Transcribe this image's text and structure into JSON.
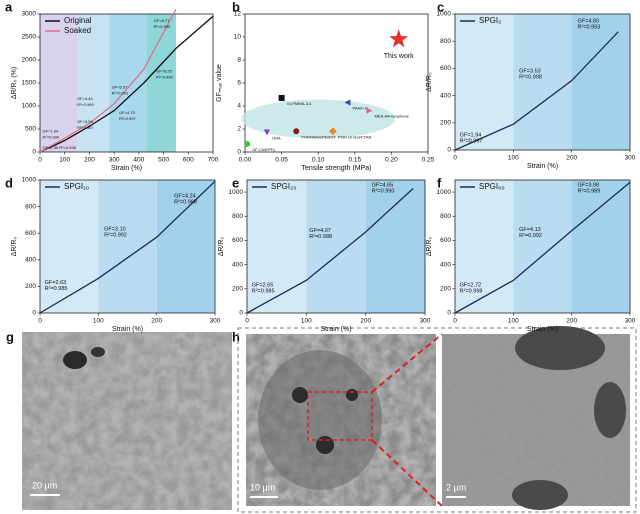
{
  "chart_data": [
    {
      "panel": "a",
      "type": "line",
      "xlabel": "Strain (%)",
      "ylabel": "ΔR/R₀ (%)",
      "x": [
        0,
        100,
        200,
        300,
        420,
        550,
        700
      ],
      "xlim": [
        0,
        700
      ],
      "xticks": [
        0,
        100,
        200,
        300,
        400,
        500,
        600,
        700
      ],
      "ylim": [
        0,
        3000
      ],
      "yticks": [
        0,
        500,
        1000,
        1500,
        2000,
        2500,
        3000
      ],
      "legend": "upper left",
      "series": [
        {
          "name": "Original",
          "color": "#111111",
          "values": [
            0,
            250,
            560,
            900,
            1500,
            2250,
            2950
          ]
        },
        {
          "name": "Soaked",
          "color": "#e0708a",
          "values": [
            0,
            300,
            620,
            1050,
            1800,
            3100,
            null
          ]
        }
      ],
      "regions": [
        {
          "from": 0,
          "to": 150,
          "color": "#d9d2ef"
        },
        {
          "from": 150,
          "to": 280,
          "color": "#c7e3f3"
        },
        {
          "from": 280,
          "to": 430,
          "color": "#a8d8ee"
        },
        {
          "from": 430,
          "to": 550,
          "color": "#8ed6d8"
        }
      ],
      "annotations": [
        {
          "x": 10,
          "y": 450,
          "lines": [
            "GF=1.94",
            "R²=0.999"
          ]
        },
        {
          "x": 10,
          "y": 90,
          "lines": [
            "GF=2.35 R²=0.998"
          ]
        },
        {
          "x": 150,
          "y": 1150,
          "lines": [
            "GF=4.44",
            "R²=0.999"
          ]
        },
        {
          "x": 150,
          "y": 650,
          "lines": [
            "GF=3.59",
            "R²=0.997"
          ]
        },
        {
          "x": 290,
          "y": 1400,
          "lines": [
            "GF=5.37",
            "R²=0.991"
          ]
        },
        {
          "x": 320,
          "y": 850,
          "lines": [
            "GF=4.75",
            "R²=0.997"
          ]
        },
        {
          "x": 460,
          "y": 2850,
          "lines": [
            "GF=8.71",
            "R²=0.993"
          ]
        },
        {
          "x": 470,
          "y": 1750,
          "lines": [
            "GF=6.25",
            "R²=0.999"
          ]
        }
      ]
    },
    {
      "panel": "b",
      "type": "scatter",
      "xlabel": "Tensile strength (MPa)",
      "ylabel": "GFₘₐₓ value",
      "xlim": [
        0,
        0.25
      ],
      "xticks": [
        {
          "value": 0,
          "label": "0.00"
        },
        {
          "value": 0.05,
          "label": "0.05"
        },
        {
          "value": 0.1,
          "label": "0.10"
        },
        {
          "value": 0.15,
          "label": "0.15"
        },
        {
          "value": 0.2,
          "label": "0.20"
        },
        {
          "value": 0.25,
          "label": "0.25"
        }
      ],
      "ylim": [
        0,
        12
      ],
      "yticks": [
        0,
        2,
        4,
        6,
        8,
        10,
        12
      ],
      "points": [
        {
          "label": "This work",
          "x": 0.21,
          "y": 9.8,
          "color": "#e8312f",
          "marker": "star"
        },
        {
          "label": "Gr-PMMA-3.4",
          "x": 0.05,
          "y": 4.7,
          "color": "#111111",
          "marker": "square"
        },
        {
          "label": "PAAm-hi",
          "x": 0.14,
          "y": 4.3,
          "color": "#2744c8",
          "marker": "triangle-left"
        },
        {
          "label": "MEA-AA-Graphene",
          "x": 0.17,
          "y": 3.6,
          "color": "#e0609a",
          "marker": "triangle-right"
        },
        {
          "label": "OHA",
          "x": 0.03,
          "y": 1.7,
          "color": "#8a3cc8",
          "marker": "triangle-down"
        },
        {
          "label": "PVA/PAAm/PEDOT",
          "x": 0.07,
          "y": 1.8,
          "color": "#8a1a1a",
          "marker": "circle"
        },
        {
          "label": "PVA+ch-Gel/CTAB",
          "x": 0.12,
          "y": 1.8,
          "color": "#f08a24",
          "marker": "diamond"
        },
        {
          "label": "GF-Ch/EPFy",
          "x": 0.003,
          "y": 0.7,
          "color": "#3cc83c",
          "marker": "circle"
        }
      ]
    },
    {
      "panel": "c",
      "type": "line",
      "xlabel": "Strain (%)",
      "ylabel": "ΔR/R₀",
      "x": [
        0,
        100,
        200,
        280
      ],
      "xlim": [
        0,
        300
      ],
      "xticks": [
        0,
        100,
        200,
        300
      ],
      "ylim": [
        0,
        1000
      ],
      "yticks": [
        0,
        200,
        400,
        600,
        800,
        1000
      ],
      "legend": "upper left",
      "series": [
        {
          "name": "SPGI₂",
          "color": "#1a2a5a",
          "values": [
            0,
            190,
            510,
            870
          ]
        }
      ],
      "regions": [
        {
          "from": 0,
          "to": 100,
          "color": "#d3e9f6"
        },
        {
          "from": 100,
          "to": 200,
          "color": "#b9dcf1"
        },
        {
          "from": 200,
          "to": 300,
          "color": "#a2d1ec"
        }
      ],
      "annotations": [
        {
          "x": 8,
          "y": 110,
          "lines": [
            "GF=1.94",
            "R²=0.997"
          ]
        },
        {
          "x": 110,
          "y": 580,
          "lines": [
            "GF=3.53",
            "R²=0.998"
          ]
        },
        {
          "x": 210,
          "y": 950,
          "lines": [
            "GF=4.80",
            "R²=0.993"
          ]
        }
      ]
    },
    {
      "panel": "d",
      "type": "line",
      "xlabel": "Strain (%)",
      "ylabel": "ΔR/R₀",
      "x": [
        0,
        100,
        200,
        300
      ],
      "xlim": [
        0,
        300
      ],
      "xticks": [
        0,
        100,
        200,
        300
      ],
      "ylim": [
        0,
        1000
      ],
      "yticks": [
        0,
        200,
        400,
        600,
        800,
        1000
      ],
      "legend": "upper left",
      "series": [
        {
          "name": "SPGI₁₀",
          "color": "#1a2a5a",
          "values": [
            0,
            260,
            570,
            990
          ]
        }
      ],
      "regions": [
        {
          "from": 0,
          "to": 100,
          "color": "#d3e9f6"
        },
        {
          "from": 100,
          "to": 200,
          "color": "#b9dcf1"
        },
        {
          "from": 200,
          "to": 300,
          "color": "#a2d1ec"
        }
      ],
      "annotations": [
        {
          "x": 8,
          "y": 230,
          "lines": [
            "GF=2.63",
            "R²=0.985"
          ]
        },
        {
          "x": 110,
          "y": 630,
          "lines": [
            "GF=3.10",
            "R²=0.992"
          ]
        },
        {
          "x": 230,
          "y": 880,
          "lines": [
            "GF=4.24",
            "R²=0.988"
          ]
        }
      ]
    },
    {
      "panel": "e",
      "type": "line",
      "xlabel": "Strain (%)",
      "ylabel": "ΔR/R₀",
      "x": [
        0,
        100,
        200,
        280
      ],
      "xlim": [
        0,
        300
      ],
      "xticks": [
        0,
        100,
        200,
        300
      ],
      "ylim": [
        0,
        1100
      ],
      "yticks": [
        0,
        200,
        400,
        600,
        800,
        1000
      ],
      "legend": "upper left",
      "series": [
        {
          "name": "SPGI₂₀",
          "color": "#1a2a5a",
          "values": [
            0,
            270,
            670,
            1030
          ]
        }
      ],
      "regions": [
        {
          "from": 0,
          "to": 100,
          "color": "#d3e9f6"
        },
        {
          "from": 100,
          "to": 200,
          "color": "#b9dcf1"
        },
        {
          "from": 200,
          "to": 300,
          "color": "#a2d1ec"
        }
      ],
      "annotations": [
        {
          "x": 8,
          "y": 230,
          "lines": [
            "GF=2.65",
            "R²=0.985"
          ]
        },
        {
          "x": 105,
          "y": 680,
          "lines": [
            "GF=4.07",
            "R²=0.988"
          ]
        },
        {
          "x": 210,
          "y": 1060,
          "lines": [
            "GF=4.65",
            "R²=0.990"
          ]
        }
      ]
    },
    {
      "panel": "f",
      "type": "line",
      "xlabel": "Strain (%)",
      "ylabel": "ΔR/R₀",
      "x": [
        0,
        100,
        200,
        300
      ],
      "xlim": [
        0,
        300
      ],
      "xticks": [
        0,
        100,
        200,
        300
      ],
      "ylim": [
        0,
        1100
      ],
      "yticks": [
        0,
        200,
        400,
        600,
        800,
        1000
      ],
      "legend": "upper left",
      "series": [
        {
          "name": "SPGI₆₀",
          "color": "#1a2a5a",
          "values": [
            0,
            270,
            680,
            1080
          ]
        }
      ],
      "regions": [
        {
          "from": 0,
          "to": 100,
          "color": "#d3e9f6"
        },
        {
          "from": 100,
          "to": 200,
          "color": "#b9dcf1"
        },
        {
          "from": 200,
          "to": 300,
          "color": "#a2d1ec"
        }
      ],
      "annotations": [
        {
          "x": 8,
          "y": 230,
          "lines": [
            "GF=2.72",
            "R²=0.998"
          ]
        },
        {
          "x": 110,
          "y": 690,
          "lines": [
            "GF=4.13",
            "R²=0.992"
          ]
        },
        {
          "x": 210,
          "y": 1060,
          "lines": [
            "GF=3.98",
            "R²=0.989"
          ]
        }
      ]
    }
  ],
  "images": [
    {
      "panel": "g",
      "scale_bars": [
        "20 μm"
      ]
    },
    {
      "panel": "h",
      "scale_bars": [
        "10 μm",
        "2 μm"
      ]
    }
  ]
}
